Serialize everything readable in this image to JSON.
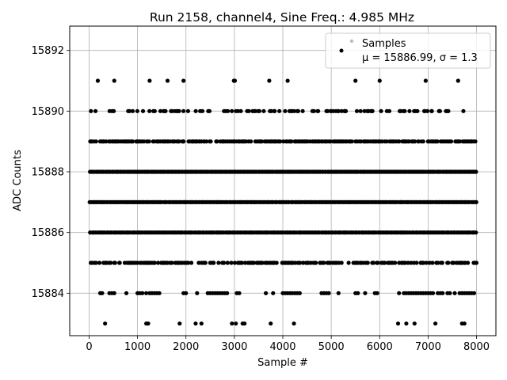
{
  "chart_data": {
    "type": "scatter",
    "title": "Run 2158, channel4, Sine Freq.: 4.985 MHz",
    "xlabel": "Sample #",
    "ylabel": "ADC Counts",
    "xlim": [
      -400,
      8400
    ],
    "ylim": [
      15882.6,
      15892.8
    ],
    "xticks": [
      0,
      1000,
      2000,
      3000,
      4000,
      5000,
      6000,
      7000,
      8000
    ],
    "yticks": [
      15884,
      15886,
      15888,
      15890,
      15892
    ],
    "grid": true,
    "legend_position": "top-right",
    "series": [
      {
        "name": "Samples",
        "stats_label": "μ = 15886.99, σ = 1.3",
        "color": "#000000",
        "n_samples": 8000,
        "mean": 15886.99,
        "sigma": 1.3,
        "levels": [
          {
            "y": 15885,
            "density": 0.55
          },
          {
            "y": 15886,
            "density": 1.0
          },
          {
            "y": 15887,
            "density": 1.0
          },
          {
            "y": 15888,
            "density": 1.0
          },
          {
            "y": 15889,
            "density": 0.75
          },
          {
            "y": 15890,
            "density": 0.3
          }
        ],
        "sparse_points": [
          {
            "x": 180,
            "y": 15891
          },
          {
            "x": 520,
            "y": 15891
          },
          {
            "x": 1250,
            "y": 15891
          },
          {
            "x": 1620,
            "y": 15891
          },
          {
            "x": 1950,
            "y": 15891
          },
          {
            "x": 2990,
            "y": 15891
          },
          {
            "x": 3010,
            "y": 15891
          },
          {
            "x": 3720,
            "y": 15891
          },
          {
            "x": 4100,
            "y": 15891
          },
          {
            "x": 5500,
            "y": 15891
          },
          {
            "x": 6000,
            "y": 15891
          },
          {
            "x": 6950,
            "y": 15891
          },
          {
            "x": 7620,
            "y": 15891
          },
          {
            "x": 230,
            "y": 15884
          },
          {
            "x": 270,
            "y": 15884
          },
          {
            "x": 420,
            "y": 15884
          },
          {
            "x": 470,
            "y": 15884
          },
          {
            "x": 520,
            "y": 15884
          },
          {
            "x": 770,
            "y": 15884
          },
          {
            "x": 1000,
            "y": 15884
          },
          {
            "x": 1050,
            "y": 15884
          },
          {
            "x": 1100,
            "y": 15884
          },
          {
            "x": 1180,
            "y": 15884
          },
          {
            "x": 1250,
            "y": 15884
          },
          {
            "x": 1300,
            "y": 15884
          },
          {
            "x": 1350,
            "y": 15884
          },
          {
            "x": 1400,
            "y": 15884
          },
          {
            "x": 1450,
            "y": 15884
          },
          {
            "x": 1950,
            "y": 15884
          },
          {
            "x": 2000,
            "y": 15884
          },
          {
            "x": 2230,
            "y": 15884
          },
          {
            "x": 2450,
            "y": 15884
          },
          {
            "x": 2500,
            "y": 15884
          },
          {
            "x": 2550,
            "y": 15884
          },
          {
            "x": 2600,
            "y": 15884
          },
          {
            "x": 2650,
            "y": 15884
          },
          {
            "x": 2700,
            "y": 15884
          },
          {
            "x": 2750,
            "y": 15884
          },
          {
            "x": 2800,
            "y": 15884
          },
          {
            "x": 2850,
            "y": 15884
          },
          {
            "x": 3050,
            "y": 15884
          },
          {
            "x": 3100,
            "y": 15884
          },
          {
            "x": 3650,
            "y": 15884
          },
          {
            "x": 3800,
            "y": 15884
          },
          {
            "x": 4000,
            "y": 15884
          },
          {
            "x": 4050,
            "y": 15884
          },
          {
            "x": 4100,
            "y": 15884
          },
          {
            "x": 4150,
            "y": 15884
          },
          {
            "x": 4200,
            "y": 15884
          },
          {
            "x": 4250,
            "y": 15884
          },
          {
            "x": 4300,
            "y": 15884
          },
          {
            "x": 4350,
            "y": 15884
          },
          {
            "x": 4800,
            "y": 15884
          },
          {
            "x": 4850,
            "y": 15884
          },
          {
            "x": 4900,
            "y": 15884
          },
          {
            "x": 4950,
            "y": 15884
          },
          {
            "x": 5150,
            "y": 15884
          },
          {
            "x": 5500,
            "y": 15884
          },
          {
            "x": 5550,
            "y": 15884
          },
          {
            "x": 5700,
            "y": 15884
          },
          {
            "x": 5900,
            "y": 15884
          },
          {
            "x": 5950,
            "y": 15884
          },
          {
            "x": 6400,
            "y": 15884
          },
          {
            "x": 6500,
            "y": 15884
          },
          {
            "x": 6550,
            "y": 15884
          },
          {
            "x": 6600,
            "y": 15884
          },
          {
            "x": 6650,
            "y": 15884
          },
          {
            "x": 6700,
            "y": 15884
          },
          {
            "x": 6750,
            "y": 15884
          },
          {
            "x": 6800,
            "y": 15884
          },
          {
            "x": 6850,
            "y": 15884
          },
          {
            "x": 6900,
            "y": 15884
          },
          {
            "x": 6950,
            "y": 15884
          },
          {
            "x": 7000,
            "y": 15884
          },
          {
            "x": 7050,
            "y": 15884
          },
          {
            "x": 7100,
            "y": 15884
          },
          {
            "x": 7200,
            "y": 15884
          },
          {
            "x": 7250,
            "y": 15884
          },
          {
            "x": 7300,
            "y": 15884
          },
          {
            "x": 7400,
            "y": 15884
          },
          {
            "x": 7450,
            "y": 15884
          },
          {
            "x": 7550,
            "y": 15884
          },
          {
            "x": 7650,
            "y": 15884
          },
          {
            "x": 7700,
            "y": 15884
          },
          {
            "x": 7750,
            "y": 15884
          },
          {
            "x": 7800,
            "y": 15884
          },
          {
            "x": 7850,
            "y": 15884
          },
          {
            "x": 7900,
            "y": 15884
          },
          {
            "x": 7950,
            "y": 15884
          },
          {
            "x": 330,
            "y": 15883
          },
          {
            "x": 1180,
            "y": 15883
          },
          {
            "x": 1220,
            "y": 15883
          },
          {
            "x": 1870,
            "y": 15883
          },
          {
            "x": 2200,
            "y": 15883
          },
          {
            "x": 2320,
            "y": 15883
          },
          {
            "x": 2950,
            "y": 15883
          },
          {
            "x": 3030,
            "y": 15883
          },
          {
            "x": 3170,
            "y": 15883
          },
          {
            "x": 3210,
            "y": 15883
          },
          {
            "x": 3750,
            "y": 15883
          },
          {
            "x": 4230,
            "y": 15883
          },
          {
            "x": 6380,
            "y": 15883
          },
          {
            "x": 6550,
            "y": 15883
          },
          {
            "x": 6720,
            "y": 15883
          },
          {
            "x": 7150,
            "y": 15883
          },
          {
            "x": 7700,
            "y": 15883
          },
          {
            "x": 7750,
            "y": 15883
          }
        ]
      }
    ]
  }
}
